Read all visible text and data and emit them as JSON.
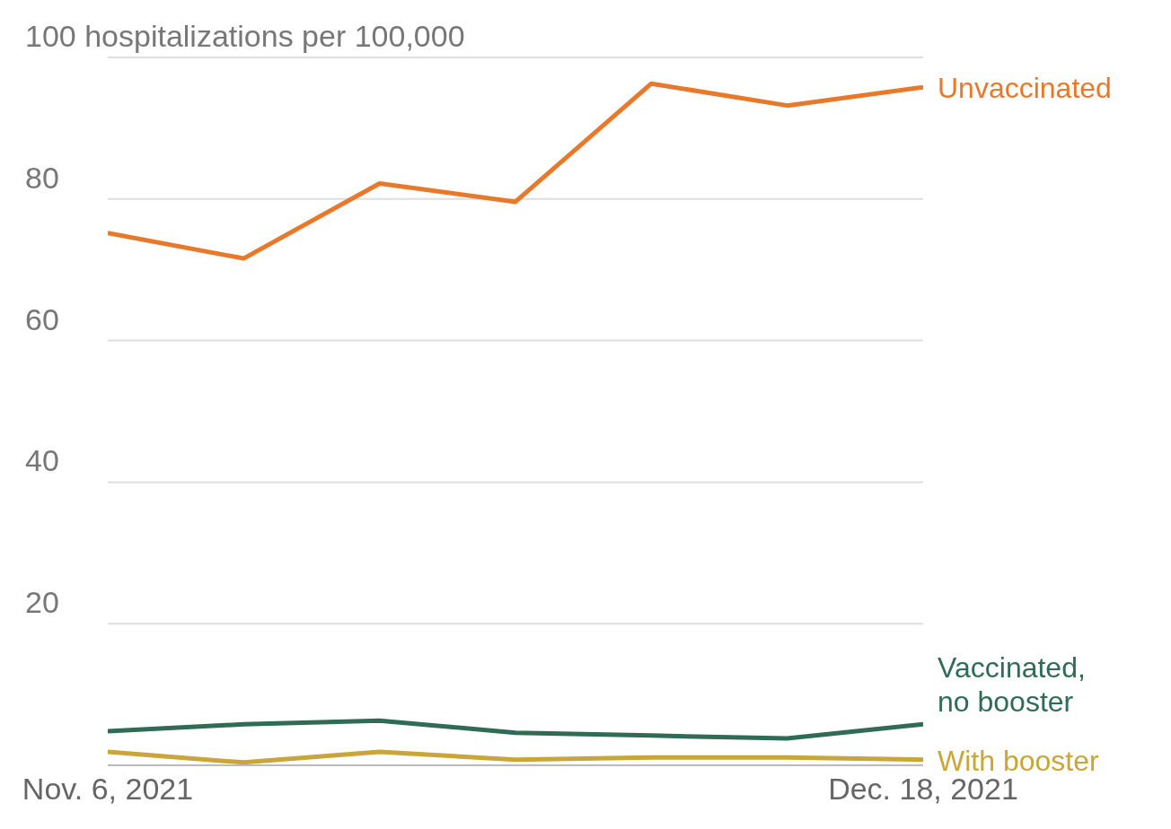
{
  "chart_data": {
    "type": "line",
    "x": [
      "2021-11-06",
      "2021-11-13",
      "2021-11-20",
      "2021-11-27",
      "2021-12-04",
      "2021-12-11",
      "2021-12-18"
    ],
    "xlim": [
      "2021-11-06",
      "2021-12-18"
    ],
    "xticks": [
      {
        "value": "2021-11-06",
        "label": "Nov. 6, 2021"
      },
      {
        "value": "2021-12-18",
        "label": "Dec. 18, 2021"
      }
    ],
    "ylim": [
      0,
      100
    ],
    "yticks": [
      {
        "value": 0,
        "label": null
      },
      20,
      40,
      60,
      80,
      {
        "value": 100,
        "label": "100 hospitalizations per 100,000"
      }
    ],
    "series": [
      {
        "name": "Unvaccinated",
        "color": "#e8782a",
        "values": [
          75.2,
          71.6,
          82.2,
          79.6,
          96.3,
          93.2,
          95.8
        ]
      },
      {
        "name": "Vaccinated, no booster",
        "color": "#2f6b55",
        "values": [
          4.8,
          5.8,
          6.3,
          4.6,
          4.2,
          3.8,
          5.8
        ]
      },
      {
        "name": "With booster",
        "color": "#c9a53a",
        "values": [
          1.9,
          0.4,
          1.9,
          0.8,
          1.1,
          1.1,
          0.8
        ]
      }
    ],
    "grid": "y",
    "legend": false,
    "marker": "none",
    "line_style": "solid"
  }
}
